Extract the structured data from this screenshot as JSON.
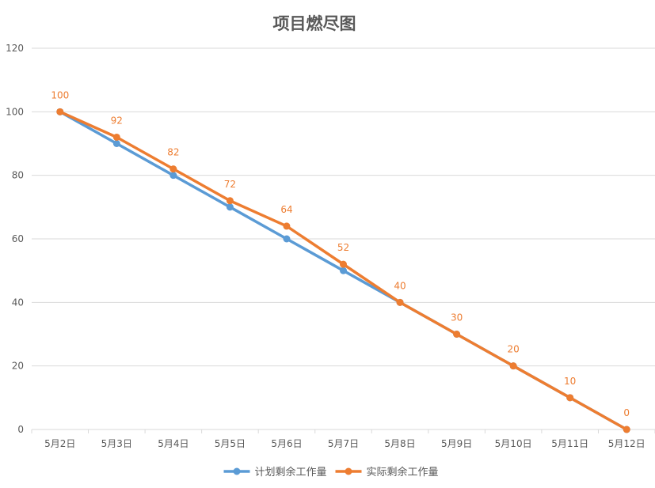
{
  "chart_data": {
    "type": "line",
    "title": "项目燃尽图",
    "categories": [
      "5月2日",
      "5月3日",
      "5月4日",
      "5月5日",
      "5月6日",
      "5月7日",
      "5月8日",
      "5月9日",
      "5月10日",
      "5月11日",
      "5月12日"
    ],
    "series": [
      {
        "name": "计划剩余工作量",
        "color": "#5B9BD5",
        "values": [
          100,
          90,
          80,
          70,
          60,
          50,
          40,
          30,
          20,
          10,
          0
        ],
        "data_labels": false
      },
      {
        "name": "实际剩余工作量",
        "color": "#ED7D31",
        "values": [
          100,
          92,
          82,
          72,
          64,
          52,
          40,
          30,
          20,
          10,
          0
        ],
        "data_labels": true
      }
    ],
    "ylim": [
      0,
      120
    ],
    "yticks": [
      0,
      20,
      40,
      60,
      80,
      100,
      120
    ],
    "grid": true,
    "legend": "bottom"
  }
}
